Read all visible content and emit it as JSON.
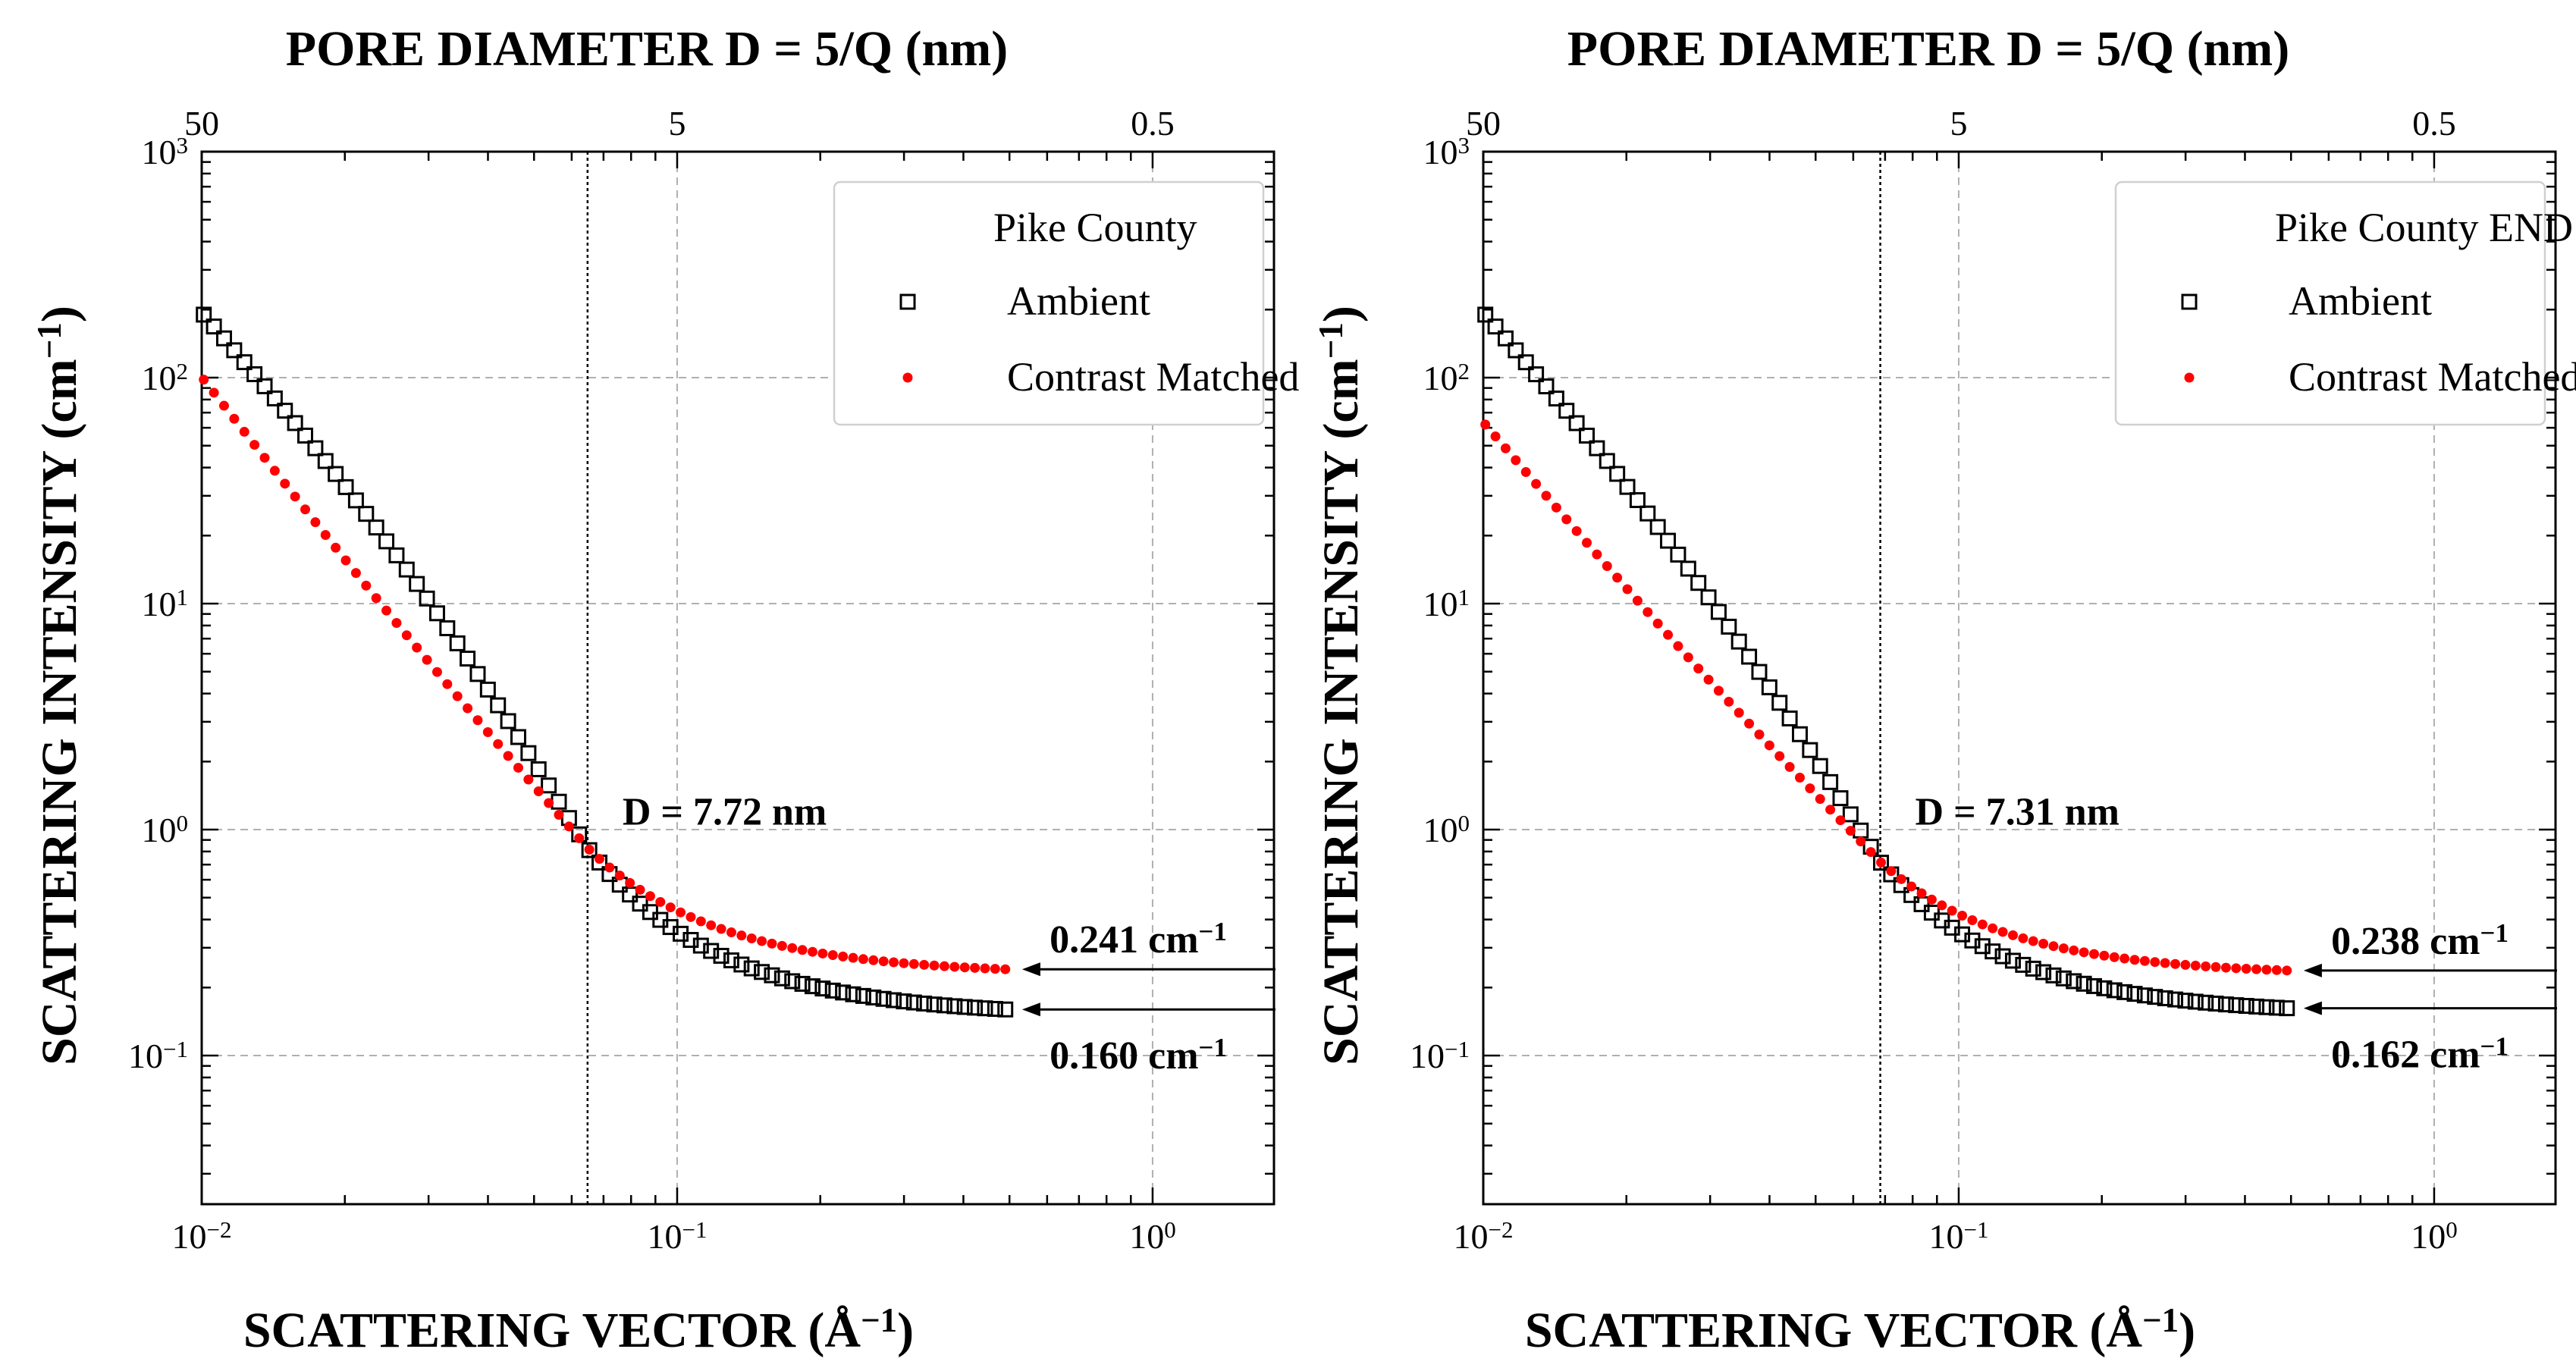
{
  "chart_data": [
    {
      "type": "scatter",
      "panel": "left",
      "title_top": "PORE DIAMETER D = 5/Q (nm)",
      "top_ticks": [
        {
          "q": 0.01,
          "label": "50"
        },
        {
          "q": 0.1,
          "label": "5"
        },
        {
          "q": 1.0,
          "label": "0.5"
        }
      ],
      "xlabel": "SCATTERING VECTOR (Å",
      "xlabel_sup": "−1",
      "xlabel_close": ")",
      "ylabel": "SCATTERING INTENSITY (cm",
      "ylabel_sup": "−1",
      "ylabel_close": ")",
      "xscale": "log",
      "yscale": "log",
      "xlim": [
        0.01,
        1.8
      ],
      "ylim": [
        0.022,
        1000
      ],
      "x_ticks": [
        {
          "v": 0.01,
          "base": "10",
          "exp": "−2"
        },
        {
          "v": 0.1,
          "base": "10",
          "exp": "−1"
        },
        {
          "v": 1.0,
          "base": "10",
          "exp": "0"
        }
      ],
      "y_ticks": [
        {
          "v": 0.1,
          "base": "10",
          "exp": "−1"
        },
        {
          "v": 1,
          "base": "10",
          "exp": "0"
        },
        {
          "v": 10,
          "base": "10",
          "exp": "1"
        },
        {
          "v": 100,
          "base": "10",
          "exp": "2"
        },
        {
          "v": 1000,
          "base": "10",
          "exp": "3"
        }
      ],
      "grid": true,
      "legend": {
        "title": "Pike County",
        "placement": "top-right",
        "entries": [
          {
            "label": "Ambient",
            "marker": "open-square",
            "color": "#000000"
          },
          {
            "label": "Contrast Matched",
            "marker": "filled-circle",
            "color": "#ff0000"
          }
        ]
      },
      "crossover": {
        "q": 0.0648,
        "label": "D = 7.72 nm"
      },
      "series": [
        {
          "name": "Ambient",
          "marker": "open-square",
          "color": "#000000",
          "q_start": 0.0101,
          "q_end": 0.49,
          "y_start": 190,
          "q_cross": 0.0648,
          "y_cross": 0.83,
          "y_end": 0.16,
          "n": 80
        },
        {
          "name": "Contrast Matched",
          "marker": "filled-circle",
          "color": "#ff0000",
          "q_start": 0.0101,
          "q_end": 0.49,
          "y_start": 98,
          "q_cross": 0.0648,
          "y_cross": 0.83,
          "y_end": 0.241,
          "n": 80
        }
      ],
      "annotations": [
        {
          "y": 0.241,
          "value": "0.241 cm",
          "sup": "−1",
          "label_side": "above"
        },
        {
          "y": 0.16,
          "value": "0.160 cm",
          "sup": "−1",
          "label_side": "below"
        }
      ]
    },
    {
      "type": "scatter",
      "panel": "right",
      "title_top": "PORE DIAMETER D = 5/Q (nm)",
      "top_ticks": [
        {
          "q": 0.01,
          "label": "50"
        },
        {
          "q": 0.1,
          "label": "5"
        },
        {
          "q": 1.0,
          "label": "0.5"
        }
      ],
      "xlabel": "SCATTERING VECTOR (Å",
      "xlabel_sup": "−1",
      "xlabel_close": ")",
      "ylabel": "SCATTERING INTENSITY (cm",
      "ylabel_sup": "−1",
      "ylabel_close": ")",
      "xscale": "log",
      "yscale": "log",
      "xlim": [
        0.01,
        1.8
      ],
      "ylim": [
        0.022,
        1000
      ],
      "x_ticks": [
        {
          "v": 0.01,
          "base": "10",
          "exp": "−2"
        },
        {
          "v": 0.1,
          "base": "10",
          "exp": "−1"
        },
        {
          "v": 1.0,
          "base": "10",
          "exp": "0"
        }
      ],
      "y_ticks": [
        {
          "v": 0.1,
          "base": "10",
          "exp": "−1"
        },
        {
          "v": 1,
          "base": "10",
          "exp": "0"
        },
        {
          "v": 10,
          "base": "10",
          "exp": "1"
        },
        {
          "v": 100,
          "base": "10",
          "exp": "2"
        },
        {
          "v": 1000,
          "base": "10",
          "exp": "3"
        }
      ],
      "grid": true,
      "legend": {
        "title": "Pike County END",
        "placement": "top-right",
        "entries": [
          {
            "label": "Ambient",
            "marker": "open-square",
            "color": "#000000"
          },
          {
            "label": "Contrast Matched",
            "marker": "filled-circle",
            "color": "#ff0000"
          }
        ]
      },
      "crossover": {
        "q": 0.0684,
        "label": "D = 7.31 nm"
      },
      "series": [
        {
          "name": "Ambient",
          "marker": "open-square",
          "color": "#000000",
          "q_start": 0.0101,
          "q_end": 0.49,
          "y_start": 190,
          "q_cross": 0.0684,
          "y_cross": 0.72,
          "y_end": 0.162,
          "n": 80
        },
        {
          "name": "Contrast Matched",
          "marker": "filled-circle",
          "color": "#ff0000",
          "q_start": 0.0101,
          "q_end": 0.49,
          "y_start": 62,
          "q_cross": 0.0684,
          "y_cross": 0.72,
          "y_end": 0.238,
          "n": 80
        }
      ],
      "annotations": [
        {
          "y": 0.238,
          "value": "0.238 cm",
          "sup": "−1",
          "label_side": "above"
        },
        {
          "y": 0.162,
          "value": "0.162 cm",
          "sup": "−1",
          "label_side": "below"
        }
      ]
    }
  ]
}
